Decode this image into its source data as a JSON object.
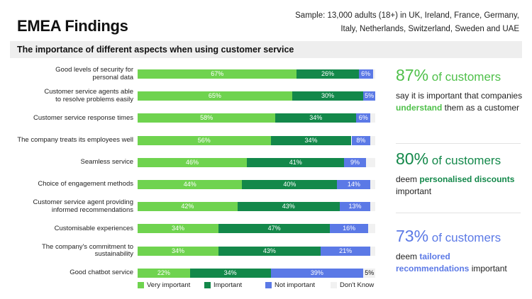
{
  "header": {
    "title": "EMEA Findings",
    "sample_line1": "Sample: 13,000 adults (18+) in UK, Ireland, France, Germany,",
    "sample_line2": "Italy, Netherlands, Switzerland, Sweden and UAE"
  },
  "colors": {
    "very_important": "#6fd34f",
    "important": "#13884a",
    "not_important": "#5b79e6",
    "dont_know": "#f1f1f1",
    "callout_green_light": "#4fc04a",
    "callout_green_dark": "#13884a",
    "callout_blue": "#5b79e6"
  },
  "chart_data": {
    "type": "bar",
    "orientation": "horizontal-stacked",
    "title": "The importance of different aspects when using customer service",
    "xlim": [
      0,
      100
    ],
    "categories": [
      [
        "Good levels of security for",
        "personal data"
      ],
      [
        "Customer service agents able",
        "to resolve problems easily"
      ],
      [
        "Customer service response times"
      ],
      [
        "The company treats its employees well"
      ],
      [
        "Seamless service"
      ],
      [
        "Choice of engagement methods"
      ],
      [
        "Customer service agent providing",
        "informed recommendations"
      ],
      [
        "Customisable experiences"
      ],
      [
        "The company's commitment to",
        "sustainability"
      ],
      [
        "Good chatbot service"
      ]
    ],
    "series": [
      {
        "name": "Very important",
        "values": [
          67,
          65,
          58,
          56,
          46,
          44,
          42,
          34,
          34,
          22
        ]
      },
      {
        "name": "Important",
        "values": [
          26,
          30,
          34,
          34,
          41,
          40,
          43,
          47,
          43,
          34
        ]
      },
      {
        "name": "Not important",
        "values": [
          6,
          5,
          6,
          8,
          9,
          14,
          13,
          16,
          21,
          39
        ]
      },
      {
        "name": "Don't Know",
        "values": [
          1,
          0,
          2,
          2,
          4,
          2,
          2,
          3,
          2,
          5
        ],
        "labels": [
          "",
          "",
          "",
          "",
          "",
          "",
          "",
          "",
          "",
          "5%"
        ]
      }
    ]
  },
  "callouts": [
    {
      "pct": "87%",
      "suffix": "of customers",
      "pre": "say it is important that companies ",
      "highlight": "understand",
      "post": " them as a customer"
    },
    {
      "pct": "80%",
      "suffix": "of customers",
      "pre": "deem ",
      "highlight": "personalised discounts",
      "post": " important"
    },
    {
      "pct": "73%",
      "suffix": "of customers",
      "pre": "deem ",
      "highlight": "tailored recommendations",
      "post": " important"
    }
  ]
}
